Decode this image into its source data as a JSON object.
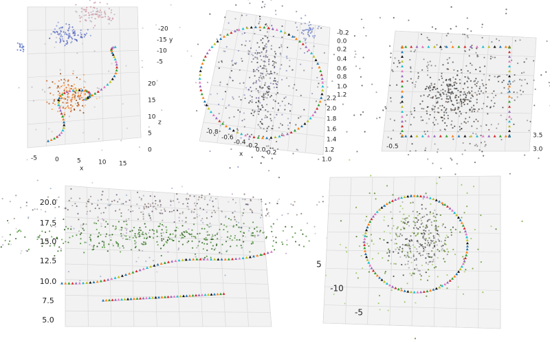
{
  "panels": [
    {
      "x_ticks": [
        "-5",
        "0",
        "5",
        "10",
        "15"
      ],
      "x_label": "x",
      "z_ticks": [
        "0",
        "5",
        "10",
        "15",
        "20"
      ],
      "z_label": "z",
      "y_ticks": [
        "-20",
        "-15",
        "-10",
        "-5"
      ],
      "y_label": "y"
    },
    {
      "right_ticks": [
        "-0.2",
        "0.0",
        "0.2",
        "0.4",
        "0.6",
        "0.8",
        "1.0",
        "1.2"
      ],
      "depth_ticks": [
        "2.2",
        "2.0",
        "1.8",
        "1.6",
        "1.4",
        "1.2",
        "1.0"
      ],
      "x_ticks": [
        "-0.8",
        "-0.6",
        "-0.4",
        "-0.2",
        "0.0",
        "0.2"
      ],
      "x_label": "x"
    },
    {
      "x_ticks": [
        "-0.5"
      ],
      "depth_ticks": [
        "3.5",
        "3.0"
      ]
    },
    {
      "y_ticks": [
        "20.0",
        "17.5",
        "15.0",
        "12.5",
        "10.0",
        "7.5",
        "5.0"
      ]
    },
    {
      "ticks": [
        "5",
        "-10",
        "-5"
      ]
    }
  ]
}
